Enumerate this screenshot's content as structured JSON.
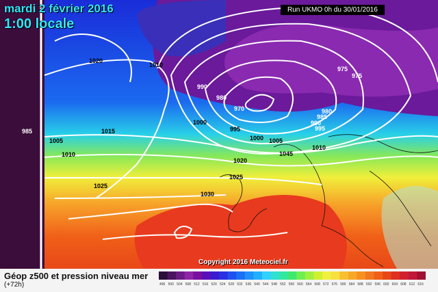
{
  "title": {
    "date": "mardi 2 février 2016",
    "time": "1:00 locale"
  },
  "run": "Run UKMO 0h du 30/01/2016",
  "copyright": "Copyright 2016 Meteociel.fr",
  "caption": "Géop z500 et pression niveau mer",
  "sub": "(+72h)",
  "isobar_labels": [
    "1020",
    "1010",
    "990",
    "980",
    "970",
    "975",
    "975",
    "980",
    "985",
    "990",
    "995",
    "985",
    "1005",
    "1015",
    "1000",
    "995",
    "1000",
    "1005",
    "1010",
    "1045",
    "1020",
    "1010",
    "1025",
    "1025",
    "1030"
  ],
  "legend_values": [
    "496",
    "500",
    "504",
    "508",
    "512",
    "516",
    "520",
    "524",
    "528",
    "532",
    "536",
    "540",
    "544",
    "548",
    "552",
    "556",
    "560",
    "564",
    "568",
    "572",
    "576",
    "580",
    "584",
    "588",
    "592",
    "596",
    "600",
    "604",
    "608",
    "612",
    "616"
  ],
  "legend_colors": [
    "#2a0f3a",
    "#4b145e",
    "#6d1b86",
    "#8f25a8",
    "#7a0fa0",
    "#5a10b8",
    "#3a1ad0",
    "#2a30e0",
    "#2050f0",
    "#1a70f5",
    "#2090ff",
    "#20b0ff",
    "#30d0ff",
    "#30e0d0",
    "#30e8a0",
    "#40e870",
    "#70f050",
    "#a0f040",
    "#d0f030",
    "#f0f040",
    "#f8e040",
    "#f8c030",
    "#f8a828",
    "#f89020",
    "#f07820",
    "#f06018",
    "#e84818",
    "#e03020",
    "#d02030",
    "#c01838",
    "#a01030"
  ]
}
